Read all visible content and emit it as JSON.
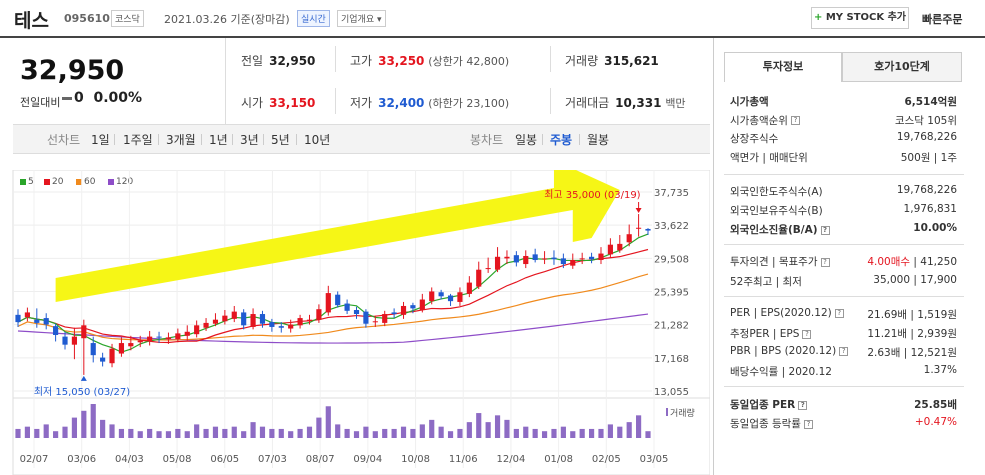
{
  "header": {
    "stock_name": "테스",
    "code": "095610",
    "market_tag": "코스닥",
    "date_text": "2021.03.26  기준(장마감)",
    "realtime_tag": "실시간",
    "company_tag": "기업개요",
    "mystock_label": "MY STOCK 추가",
    "quick_order_label": "빠른주문"
  },
  "price": {
    "current": "32,950",
    "change_label": "전일대비",
    "change_value": "0",
    "change_pct": "0.00%"
  },
  "summary": {
    "prev_label": "전일",
    "prev_value": "32,950",
    "high_label": "고가",
    "high_value": "33,250",
    "upper_limit": "(상한가 42,800)",
    "volume_label": "거래량",
    "volume_value": "315,621",
    "open_label": "시가",
    "open_value": "33,150",
    "low_label": "저가",
    "low_value": "32,400",
    "lower_limit": "(하한가 23,100)",
    "amount_label": "거래대금",
    "amount_value": "10,331",
    "amount_unit": "백만"
  },
  "chart_tabs": {
    "line_label": "선차트",
    "items": [
      "1일",
      "1주일",
      "3개월",
      "1년",
      "3년",
      "5년",
      "10년"
    ],
    "candle_label": "봉차트",
    "candle_items": [
      "일봉",
      "주봉",
      "월봉"
    ]
  },
  "legend": [
    "5",
    "20",
    "60",
    "120"
  ],
  "colors": {
    "ma5": "#2aa52a",
    "ma20": "#e4151f",
    "ma60": "#f08a1d",
    "ma120": "#8e4dc8",
    "up": "#e4151f",
    "down": "#1f5bd1",
    "volume": "#8d6bc4",
    "highlight": "#f5f50a"
  },
  "chart_data": {
    "type": "candlestick",
    "y_ticks": [
      "37,735",
      "33,622",
      "29,508",
      "25,395",
      "21,282",
      "17,168",
      "13,055"
    ],
    "x_labels": [
      "02/07",
      "03/06",
      "04/03",
      "05/08",
      "06/05",
      "07/03",
      "08/07",
      "09/04",
      "10/08",
      "11/06",
      "12/04",
      "01/08",
      "02/05",
      "03/05"
    ],
    "high_annotation": "최고 35,000 (03/19)",
    "low_annotation": "최저 15,050 (03/27)",
    "volume_label": "거래량",
    "close": [
      21600,
      22800,
      21500,
      21300,
      20000,
      18800,
      19800,
      21200,
      17500,
      16700,
      18300,
      19000,
      19000,
      19300,
      19800,
      19700,
      19700,
      20200,
      20400,
      21200,
      21500,
      21900,
      22400,
      22900,
      21200,
      22600,
      21400,
      21000,
      20900,
      21300,
      22100,
      21900,
      23200,
      25200,
      23700,
      23000,
      22600,
      21400,
      21700,
      22600,
      22600,
      23600,
      23300,
      24400,
      25400,
      24800,
      24200,
      25300,
      26500,
      28100,
      28300,
      29700,
      29700,
      29000,
      29800,
      29300,
      29500,
      29400,
      28800,
      29300,
      29500,
      29400,
      30100,
      31200,
      31300,
      32500,
      33300,
      32950
    ],
    "open": [
      22500,
      22200,
      21900,
      22100,
      21100,
      19800,
      18800,
      19600,
      19000,
      17200,
      16500,
      17700,
      18600,
      19100,
      19200,
      19800,
      19500,
      19500,
      19900,
      20100,
      20900,
      21400,
      21700,
      22000,
      22800,
      21000,
      22600,
      21600,
      21100,
      20800,
      21200,
      21800,
      21900,
      22800,
      25000,
      23900,
      23100,
      22900,
      21600,
      21500,
      22800,
      22500,
      23700,
      23100,
      24200,
      25300,
      24900,
      24100,
      25100,
      26000,
      28200,
      28100,
      29500,
      29900,
      28800,
      30000,
      29400,
      29600,
      29500,
      28600,
      29400,
      29700,
      29300,
      30000,
      30500,
      31500,
      33300,
      33150
    ],
    "high": [
      23200,
      23400,
      23300,
      22700,
      21400,
      20400,
      20900,
      21900,
      19800,
      17800,
      18900,
      19700,
      19900,
      19900,
      20500,
      20400,
      20300,
      20800,
      21200,
      21800,
      22100,
      22700,
      23100,
      23600,
      23200,
      23300,
      23000,
      22000,
      21600,
      21900,
      22500,
      22500,
      23800,
      26100,
      25400,
      24400,
      23500,
      23200,
      22400,
      23000,
      23300,
      24100,
      24000,
      25100,
      25900,
      25600,
      25100,
      25900,
      27300,
      29100,
      29600,
      30900,
      30500,
      30400,
      30500,
      30700,
      30400,
      30500,
      30100,
      30100,
      30200,
      30200,
      30900,
      32000,
      32400,
      33700,
      35000,
      33250
    ],
    "low": [
      21000,
      21700,
      20900,
      20700,
      19200,
      18200,
      17000,
      15050,
      16600,
      16100,
      16000,
      17300,
      18100,
      18500,
      18700,
      19000,
      18900,
      19100,
      19300,
      19700,
      20500,
      21100,
      21300,
      21600,
      20700,
      20700,
      20900,
      20400,
      20300,
      20300,
      20800,
      21300,
      21500,
      22400,
      23400,
      22600,
      22000,
      20900,
      21000,
      21100,
      22100,
      22000,
      22700,
      22800,
      23800,
      24400,
      23600,
      23600,
      24700,
      25700,
      27700,
      27800,
      28800,
      28500,
      28300,
      29000,
      28800,
      28700,
      28300,
      28200,
      28800,
      28900,
      28800,
      29600,
      30200,
      31000,
      32200,
      32400
    ],
    "volume": [
      4,
      5,
      4,
      6,
      3,
      5,
      9,
      12,
      15,
      8,
      6,
      4,
      4,
      3,
      4,
      3,
      3,
      4,
      3,
      6,
      4,
      5,
      4,
      5,
      3,
      7,
      5,
      4,
      4,
      3,
      4,
      5,
      9,
      14,
      6,
      4,
      3,
      5,
      3,
      4,
      4,
      5,
      4,
      6,
      8,
      5,
      3,
      4,
      7,
      11,
      7,
      10,
      8,
      4,
      5,
      4,
      3,
      4,
      5,
      3,
      4,
      4,
      4,
      6,
      5,
      7,
      10,
      3
    ],
    "ylim": [
      13055,
      37735
    ]
  },
  "investment": {
    "tab_info": "투자정보",
    "tab_orderbook": "호가10단계",
    "rows1": [
      {
        "label": "시가총액",
        "value": "6,514억원",
        "bold": true
      },
      {
        "label": "시가총액순위",
        "value": "코스닥 105위"
      },
      {
        "label": "상장주식수",
        "value": "19,768,226"
      },
      {
        "label": "액면가  |  매매단위",
        "value": "500원  |  1주"
      }
    ],
    "rows2": [
      {
        "label": "외국인한도주식수(A)",
        "value": "19,768,226"
      },
      {
        "label": "외국인보유주식수(B)",
        "value": "1,976,831"
      },
      {
        "label": "외국인소진율(B/A)",
        "value": "10.00%",
        "bold": true
      }
    ],
    "opinion_label": "투자의견  |  목표주가",
    "opinion_value": "4.00매수",
    "target_value": "41,250",
    "w52_label": "52주최고  |  최저",
    "w52_high": "35,000",
    "w52_low": "17,900",
    "rows4": [
      {
        "label": "PER  |  EPS(2020.12)",
        "v1": "21.69배",
        "v2": "1,519원"
      },
      {
        "label": "추정PER  |  EPS",
        "v1": "11.21배",
        "v2": "2,939원"
      },
      {
        "label": "PBR  |  BPS (2020.12)",
        "v1": "2.63배",
        "v2": "12,521원"
      },
      {
        "label": "배당수익률  |  2020.12",
        "v1": "",
        "v2": "1.37%"
      }
    ],
    "sector_per_label": "동일업종 PER",
    "sector_per_value": "25.85배",
    "sector_rate_label": "동일업종 등락률",
    "sector_rate_value": "+0.47%"
  }
}
